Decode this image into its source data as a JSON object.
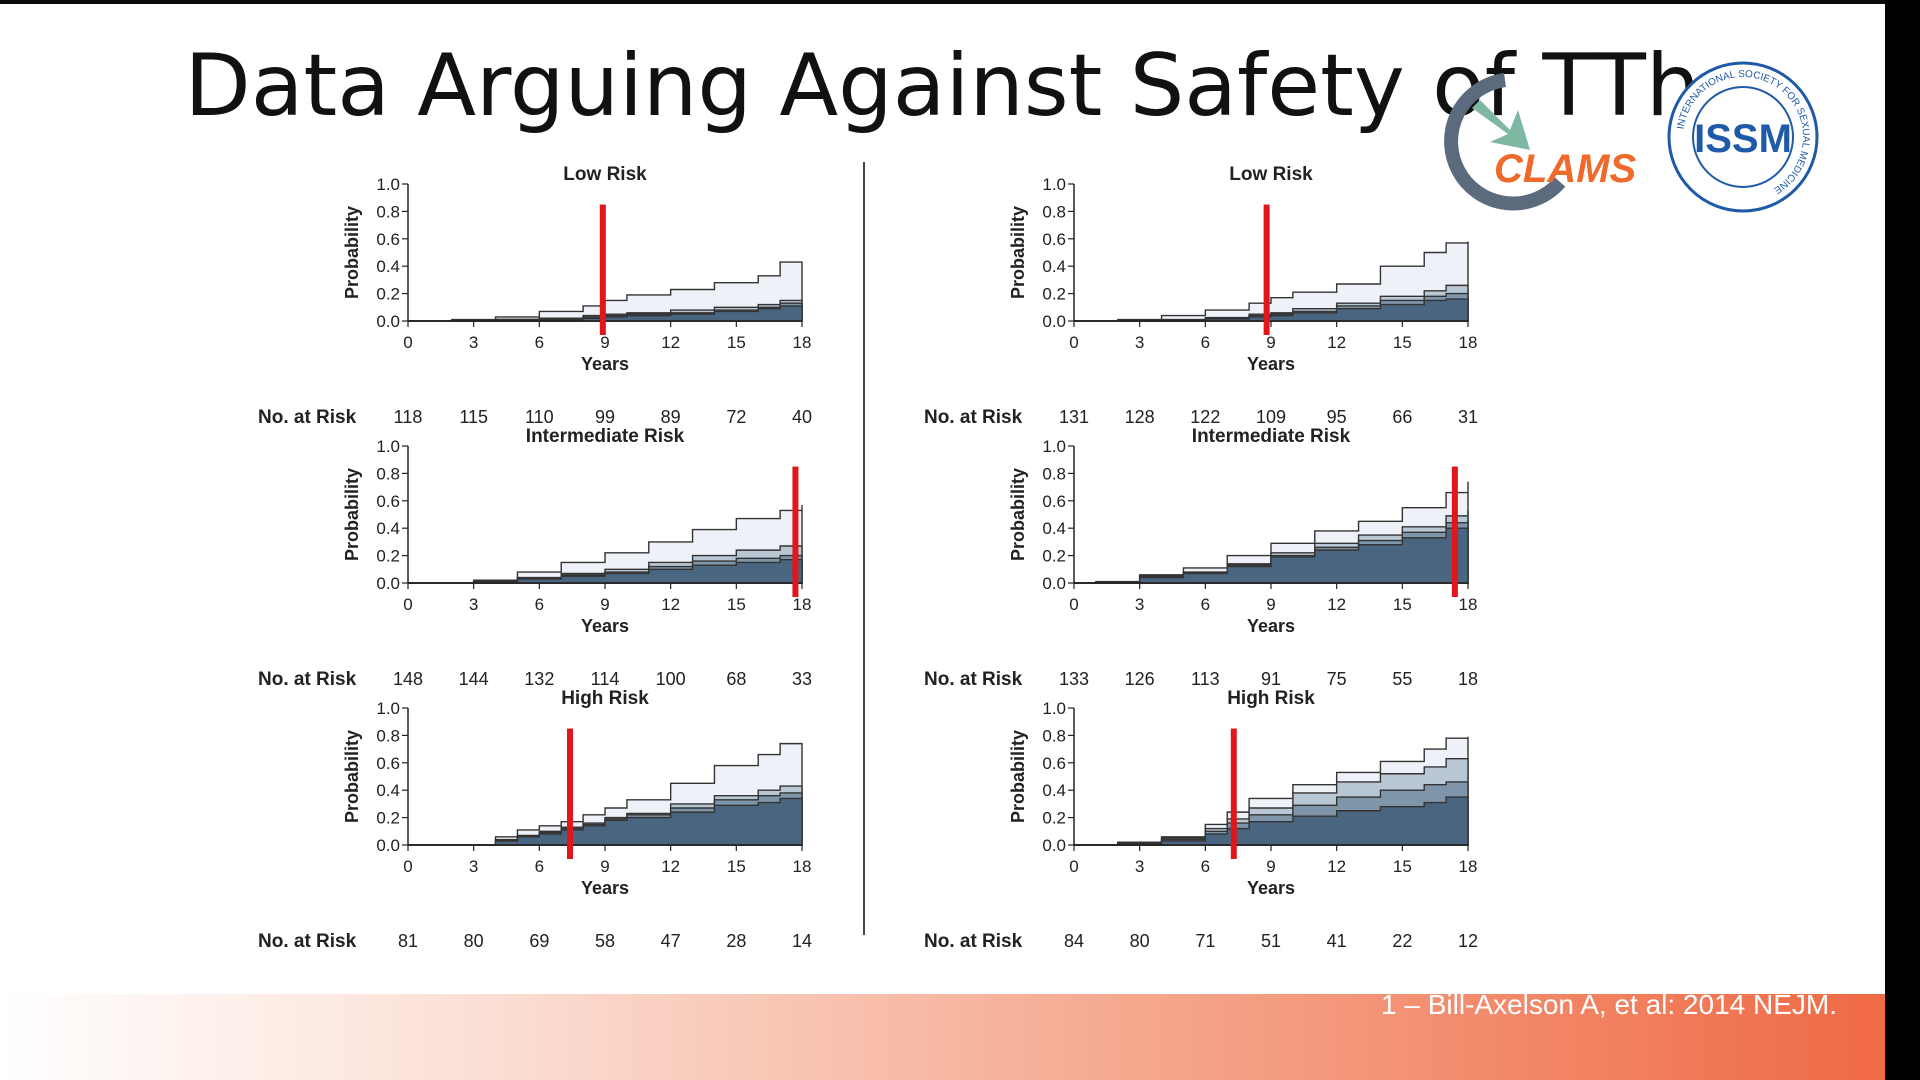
{
  "slide": {
    "title": "Data Arguing Against Safety of TTh",
    "citation": "1 – Bill-Axelson A, et al: 2014 NEJM."
  },
  "logos": {
    "clams_text": "CLAMS",
    "issm_text": "ISSM",
    "issm_ring_text": "INTERNATIONAL SOCIETY FOR SEXUAL MEDICINE"
  },
  "colors": {
    "red_marker": "#e0161b",
    "dark_band": "#4a6580",
    "mid_band": "#7f95aa",
    "light_band": "#b9c7d5",
    "pale_band": "#eef1f8",
    "footer_accent": "#ef6a45"
  },
  "chart_data": [
    {
      "type": "area",
      "column": "left",
      "title": "Low Risk",
      "xlabel": "Years",
      "ylabel": "Probability",
      "xlim": [
        0,
        18
      ],
      "ylim": [
        0,
        1.0
      ],
      "x_ticks": [
        "0",
        "3",
        "6",
        "9",
        "12",
        "15",
        "18"
      ],
      "y_ticks": [
        "0.0",
        "0.2",
        "0.4",
        "0.6",
        "0.8",
        "1.0"
      ],
      "risk_label": "No. at Risk",
      "at_risk": [
        "118",
        "115",
        "110",
        "99",
        "89",
        "72",
        "40"
      ],
      "marker_year": 8.9,
      "x": [
        0,
        2,
        4,
        6,
        8,
        9,
        10,
        12,
        14,
        16,
        17,
        18
      ],
      "series": [
        {
          "name": "band1",
          "values": [
            0,
            0,
            0.005,
            0.01,
            0.02,
            0.03,
            0.04,
            0.05,
            0.07,
            0.09,
            0.11,
            0.11
          ]
        },
        {
          "name": "band2",
          "values": [
            0,
            0,
            0.01,
            0.015,
            0.03,
            0.04,
            0.05,
            0.06,
            0.08,
            0.1,
            0.13,
            0.13
          ]
        },
        {
          "name": "band3",
          "values": [
            0,
            0,
            0.012,
            0.02,
            0.04,
            0.05,
            0.06,
            0.08,
            0.1,
            0.12,
            0.15,
            0.15
          ]
        },
        {
          "name": "band4",
          "values": [
            0,
            0.01,
            0.03,
            0.07,
            0.11,
            0.15,
            0.19,
            0.23,
            0.28,
            0.33,
            0.43,
            0.43
          ]
        }
      ]
    },
    {
      "type": "area",
      "column": "right",
      "title": "Low Risk",
      "xlabel": "Years",
      "ylabel": "Probability",
      "xlim": [
        0,
        18
      ],
      "ylim": [
        0,
        1.0
      ],
      "x_ticks": [
        "0",
        "3",
        "6",
        "9",
        "12",
        "15",
        "18"
      ],
      "y_ticks": [
        "0.0",
        "0.2",
        "0.4",
        "0.6",
        "0.8",
        "1.0"
      ],
      "risk_label": "No. at Risk",
      "at_risk": [
        "131",
        "128",
        "122",
        "109",
        "95",
        "66",
        "31"
      ],
      "marker_year": 8.8,
      "x": [
        0,
        2,
        4,
        6,
        8,
        9,
        10,
        12,
        14,
        16,
        17,
        18
      ],
      "series": [
        {
          "name": "band1",
          "values": [
            0,
            0,
            0.005,
            0.015,
            0.03,
            0.04,
            0.06,
            0.09,
            0.12,
            0.15,
            0.16,
            0.16
          ]
        },
        {
          "name": "band2",
          "values": [
            0,
            0,
            0.008,
            0.02,
            0.04,
            0.05,
            0.07,
            0.11,
            0.15,
            0.18,
            0.2,
            0.2
          ]
        },
        {
          "name": "band3",
          "values": [
            0,
            0,
            0.01,
            0.025,
            0.05,
            0.06,
            0.09,
            0.13,
            0.18,
            0.22,
            0.26,
            0.26
          ]
        },
        {
          "name": "band4",
          "values": [
            0,
            0.01,
            0.04,
            0.08,
            0.13,
            0.17,
            0.21,
            0.27,
            0.4,
            0.5,
            0.57,
            0.58
          ]
        }
      ]
    },
    {
      "type": "area",
      "column": "left",
      "title": "Intermediate Risk",
      "xlabel": "Years",
      "ylabel": "Probability",
      "xlim": [
        0,
        18
      ],
      "ylim": [
        0,
        1.0
      ],
      "x_ticks": [
        "0",
        "3",
        "6",
        "9",
        "12",
        "15",
        "18"
      ],
      "y_ticks": [
        "0.0",
        "0.2",
        "0.4",
        "0.6",
        "0.8",
        "1.0"
      ],
      "risk_label": "No. at Risk",
      "at_risk": [
        "148",
        "144",
        "132",
        "114",
        "100",
        "68",
        "33"
      ],
      "marker_year": 17.7,
      "x": [
        0,
        2,
        3,
        5,
        7,
        9,
        11,
        13,
        15,
        17,
        18
      ],
      "series": [
        {
          "name": "band1",
          "values": [
            0,
            0,
            0.01,
            0.03,
            0.05,
            0.07,
            0.1,
            0.13,
            0.15,
            0.17,
            0.17
          ]
        },
        {
          "name": "band2",
          "values": [
            0,
            0,
            0.01,
            0.035,
            0.06,
            0.08,
            0.12,
            0.16,
            0.18,
            0.2,
            0.2
          ]
        },
        {
          "name": "band3",
          "values": [
            0,
            0,
            0.015,
            0.04,
            0.07,
            0.1,
            0.15,
            0.2,
            0.24,
            0.27,
            0.27
          ]
        },
        {
          "name": "band4",
          "values": [
            0,
            0,
            0.02,
            0.08,
            0.15,
            0.22,
            0.3,
            0.39,
            0.47,
            0.53,
            0.57
          ]
        }
      ]
    },
    {
      "type": "area",
      "column": "right",
      "title": "Intermediate Risk",
      "xlabel": "Years",
      "ylabel": "Probability",
      "xlim": [
        0,
        18
      ],
      "ylim": [
        0,
        1.0
      ],
      "x_ticks": [
        "0",
        "3",
        "6",
        "9",
        "12",
        "15",
        "18"
      ],
      "y_ticks": [
        "0.0",
        "0.2",
        "0.4",
        "0.6",
        "0.8",
        "1.0"
      ],
      "risk_label": "No. at Risk",
      "at_risk": [
        "133",
        "126",
        "113",
        "91",
        "75",
        "55",
        "18"
      ],
      "marker_year": 17.4,
      "x": [
        0,
        1,
        3,
        5,
        7,
        9,
        11,
        13,
        15,
        17,
        18
      ],
      "series": [
        {
          "name": "band1",
          "values": [
            0,
            0,
            0.04,
            0.07,
            0.12,
            0.19,
            0.24,
            0.28,
            0.33,
            0.4,
            0.41
          ]
        },
        {
          "name": "band2",
          "values": [
            0,
            0,
            0.045,
            0.075,
            0.13,
            0.2,
            0.26,
            0.31,
            0.37,
            0.44,
            0.46
          ]
        },
        {
          "name": "band3",
          "values": [
            0,
            0,
            0.05,
            0.08,
            0.14,
            0.22,
            0.29,
            0.35,
            0.41,
            0.49,
            0.53
          ]
        },
        {
          "name": "band4",
          "values": [
            0,
            0.01,
            0.06,
            0.11,
            0.2,
            0.29,
            0.38,
            0.45,
            0.55,
            0.66,
            0.74
          ]
        }
      ]
    },
    {
      "type": "area",
      "column": "left",
      "title": "High Risk",
      "xlabel": "Years",
      "ylabel": "Probability",
      "xlim": [
        0,
        18
      ],
      "ylim": [
        0,
        1.0
      ],
      "x_ticks": [
        "0",
        "3",
        "6",
        "9",
        "12",
        "15",
        "18"
      ],
      "y_ticks": [
        "0.0",
        "0.2",
        "0.4",
        "0.6",
        "0.8",
        "1.0"
      ],
      "risk_label": "No. at Risk",
      "at_risk": [
        "81",
        "80",
        "69",
        "58",
        "47",
        "28",
        "14"
      ],
      "marker_year": 7.4,
      "x": [
        0,
        3,
        4,
        5,
        6,
        7,
        8,
        9,
        10,
        12,
        14,
        16,
        17,
        18
      ],
      "series": [
        {
          "name": "band1",
          "values": [
            0,
            0,
            0.03,
            0.06,
            0.08,
            0.11,
            0.14,
            0.18,
            0.2,
            0.24,
            0.29,
            0.31,
            0.34,
            0.34
          ]
        },
        {
          "name": "band2",
          "values": [
            0,
            0,
            0.035,
            0.065,
            0.09,
            0.12,
            0.15,
            0.19,
            0.22,
            0.27,
            0.33,
            0.36,
            0.38,
            0.38
          ]
        },
        {
          "name": "band3",
          "values": [
            0,
            0,
            0.04,
            0.07,
            0.1,
            0.13,
            0.16,
            0.2,
            0.23,
            0.3,
            0.36,
            0.4,
            0.43,
            0.43
          ]
        },
        {
          "name": "band4",
          "values": [
            0,
            0,
            0.06,
            0.11,
            0.14,
            0.17,
            0.22,
            0.27,
            0.33,
            0.45,
            0.58,
            0.66,
            0.74,
            0.74
          ]
        }
      ]
    },
    {
      "type": "area",
      "column": "right",
      "title": "High Risk",
      "xlabel": "Years",
      "ylabel": "Probability",
      "xlim": [
        0,
        18
      ],
      "ylim": [
        0,
        1.0
      ],
      "x_ticks": [
        "0",
        "3",
        "6",
        "9",
        "12",
        "15",
        "18"
      ],
      "y_ticks": [
        "0.0",
        "0.2",
        "0.4",
        "0.6",
        "0.8",
        "1.0"
      ],
      "risk_label": "No. at Risk",
      "at_risk": [
        "84",
        "80",
        "71",
        "51",
        "41",
        "22",
        "12"
      ],
      "marker_year": 7.3,
      "x": [
        0,
        2,
        4,
        6,
        7,
        8,
        10,
        12,
        14,
        16,
        17,
        18
      ],
      "series": [
        {
          "name": "band1",
          "values": [
            0,
            0.01,
            0.03,
            0.08,
            0.12,
            0.17,
            0.21,
            0.25,
            0.28,
            0.31,
            0.35,
            0.35
          ]
        },
        {
          "name": "band2",
          "values": [
            0,
            0.012,
            0.04,
            0.1,
            0.16,
            0.22,
            0.29,
            0.35,
            0.4,
            0.44,
            0.46,
            0.46
          ]
        },
        {
          "name": "band3",
          "values": [
            0,
            0.015,
            0.05,
            0.12,
            0.19,
            0.27,
            0.38,
            0.46,
            0.52,
            0.57,
            0.63,
            0.63
          ]
        },
        {
          "name": "band4",
          "values": [
            0,
            0.02,
            0.06,
            0.15,
            0.24,
            0.34,
            0.44,
            0.53,
            0.61,
            0.7,
            0.78,
            0.79
          ]
        }
      ]
    }
  ]
}
